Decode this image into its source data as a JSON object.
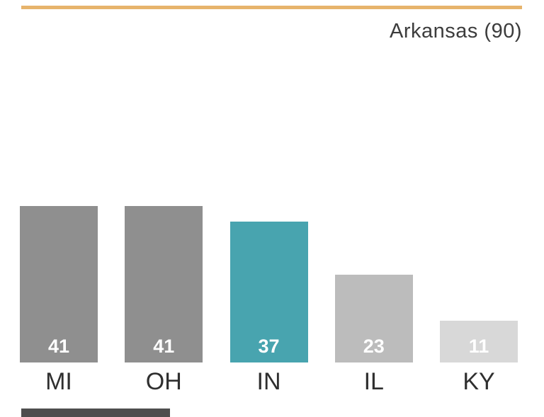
{
  "chart_data": {
    "type": "bar",
    "title": "Arkansas (90)",
    "categories": [
      "MI",
      "OH",
      "IN",
      "IL",
      "KY"
    ],
    "values": [
      41,
      41,
      37,
      23,
      11
    ],
    "xlabel": "",
    "ylabel": "",
    "ylim": [
      0,
      45
    ],
    "grid": false,
    "legend_position": "none",
    "bar_colors": [
      "#8f8f8f",
      "#8f8f8f",
      "#48a4af",
      "#bcbcbc",
      "#d8d8d8"
    ],
    "value_label_color": "#ffffff",
    "category_label_color": "#2f2f2f"
  },
  "decor": {
    "accent_line_color": "#e7b46c",
    "bottom_partial_bar_color": "#4e4e4e"
  }
}
